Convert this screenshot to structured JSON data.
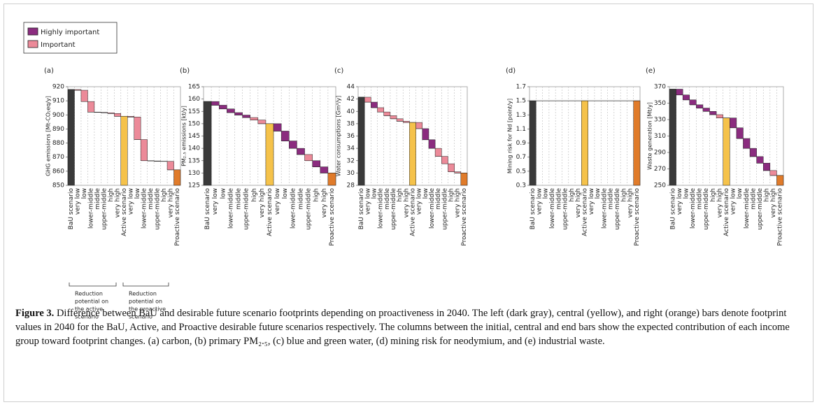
{
  "legend": [
    {
      "label": "Highly important",
      "color": "#8b2c7f"
    },
    {
      "label": "Important",
      "color": "#ec8a99"
    }
  ],
  "annotations": [
    [
      "Reduction",
      "potential on",
      "the active",
      "scenario"
    ],
    [
      "Reduction",
      "potential on",
      "the proactive",
      "scenario"
    ]
  ],
  "caption": {
    "label": "Figure 3.",
    "text": "Difference between BaU and desirable future scenario footprints depending on proactiveness in 2040. The left (dark gray), central (yellow), and right (orange) bars denote footprint values in 2040 for the BaU, Active, and Proactive desirable future scenarios respectively. The columns between the initial, central and end bars show the expected contribution of each income group toward footprint changes. (a) carbon, (b) primary PM₂.₅, (c) blue and green water, (d) mining risk for neodymium, and (e) industrial waste."
  },
  "chart_data": [
    {
      "type": "waterfall",
      "label": "(a)",
      "ylabel": "GHG emissions [Mt-CO₂eq/y]",
      "categories": [
        "BaU scenario",
        "very low",
        "low",
        "lower-middle",
        "middle",
        "upper-middle",
        "high",
        "very high",
        "Active scenario",
        "very low",
        "low",
        "lower-middle",
        "middle",
        "upper-middle",
        "high",
        "very high",
        "Proactive scenario"
      ],
      "values": [
        918,
        -0.5,
        -8,
        -7.5,
        -0.2,
        -0.3,
        -0.5,
        -2,
        899,
        -0.5,
        -16,
        -15,
        -0.2,
        -0.2,
        -0.1,
        -6,
        861
      ],
      "colors": [
        "#3a3a3a",
        "#ec8a99",
        "#ec8a99",
        "#ec8a99",
        "#ec8a99",
        "#ec8a99",
        "#ec8a99",
        "#ec8a99",
        "#f5c24a",
        "#ec8a99",
        "#ec8a99",
        "#ec8a99",
        "#ec8a99",
        "#ec8a99",
        "#ec8a99",
        "#ec8a99",
        "#e07b2a"
      ],
      "ylim": [
        850,
        920
      ],
      "yticks": [
        850,
        860,
        870,
        880,
        890,
        900,
        910,
        920
      ],
      "grid": true
    },
    {
      "type": "waterfall",
      "label": "(b)",
      "ylabel": "PM₂.₅ emissions [kt/y]",
      "categories": [
        "BaU scenario",
        "very low",
        "low",
        "lower-middle",
        "middle",
        "upper-middle",
        "high",
        "very high",
        "Active scenario",
        "very low",
        "low",
        "lower-middle",
        "middle",
        "upper-middle",
        "high",
        "very high",
        "Proactive scenario"
      ],
      "values": [
        159,
        -1.5,
        -1.5,
        -1.5,
        -1,
        -1,
        -1,
        -1.5,
        150,
        -3,
        -4,
        -3,
        -2.5,
        -2.5,
        -2.5,
        -2.5,
        130
      ],
      "colors": [
        "#3a3a3a",
        "#8b2c7f",
        "#8b2c7f",
        "#8b2c7f",
        "#8b2c7f",
        "#8b2c7f",
        "#ec8a99",
        "#ec8a99",
        "#f5c24a",
        "#8b2c7f",
        "#8b2c7f",
        "#8b2c7f",
        "#8b2c7f",
        "#ec8a99",
        "#8b2c7f",
        "#8b2c7f",
        "#e07b2a"
      ],
      "ylim": [
        125,
        165
      ],
      "yticks": [
        125,
        130,
        135,
        140,
        145,
        150,
        155,
        160,
        165
      ],
      "grid": true
    },
    {
      "type": "waterfall",
      "label": "(c)",
      "ylabel": "Water consumptions [Gm³/y]",
      "categories": [
        "BaU scenario",
        "very low",
        "low",
        "lower-middle",
        "middle",
        "upper-middle",
        "high",
        "very high",
        "Active scenario",
        "very low",
        "low",
        "lower-middle",
        "middle",
        "upper-middle",
        "high",
        "very high",
        "Proactive scenario"
      ],
      "values": [
        42.3,
        -0.8,
        -0.9,
        -0.7,
        -0.6,
        -0.5,
        -0.4,
        -0.2,
        38.2,
        -1.0,
        -1.8,
        -1.4,
        -1.3,
        -1.2,
        -1.3,
        -0.2,
        30
      ],
      "colors": [
        "#3a3a3a",
        "#ec8a99",
        "#8b2c7f",
        "#ec8a99",
        "#ec8a99",
        "#ec8a99",
        "#ec8a99",
        "#ec8a99",
        "#f5c24a",
        "#ec8a99",
        "#8b2c7f",
        "#8b2c7f",
        "#ec8a99",
        "#ec8a99",
        "#ec8a99",
        "#ec8a99",
        "#e07b2a"
      ],
      "ylim": [
        28,
        44
      ],
      "yticks": [
        28,
        30,
        32,
        34,
        36,
        38,
        40,
        42,
        44
      ],
      "grid": true
    },
    {
      "type": "waterfall",
      "label": "(d)",
      "ylabel": "Mining risk for Nd [point/y]",
      "categories": [
        "BaU scenario",
        "very low",
        "low",
        "lower-middle",
        "middle",
        "upper-middle",
        "high",
        "very high",
        "Active scenario",
        "very low",
        "low",
        "lower-middle",
        "middle",
        "upper-middle",
        "high",
        "very high",
        "Proactive scenario"
      ],
      "values": [
        1.5,
        0,
        0,
        0,
        0,
        0,
        0,
        0,
        1.5,
        0,
        0,
        0,
        0,
        0,
        0,
        0,
        1.5
      ],
      "colors": [
        "#3a3a3a",
        "#ec8a99",
        "#ec8a99",
        "#ec8a99",
        "#ec8a99",
        "#ec8a99",
        "#ec8a99",
        "#ec8a99",
        "#f5c24a",
        "#ec8a99",
        "#ec8a99",
        "#ec8a99",
        "#ec8a99",
        "#ec8a99",
        "#ec8a99",
        "#ec8a99",
        "#e07b2a"
      ],
      "ylim": [
        0.3,
        1.7
      ],
      "yticks": [
        0.3,
        0.5,
        0.7,
        0.9,
        1.1,
        1.3,
        1.5,
        1.7
      ],
      "grid": true
    },
    {
      "type": "waterfall",
      "label": "(e)",
      "ylabel": "Waste generation [Mt/y]",
      "categories": [
        "BaU scenario",
        "very low",
        "low",
        "lower-middle",
        "middle",
        "upper-middle",
        "high",
        "very high",
        "Active scenario",
        "very low",
        "low",
        "lower-middle",
        "middle",
        "upper-middle",
        "high",
        "very high",
        "Proactive scenario"
      ],
      "values": [
        367,
        -7,
        -6,
        -6,
        -4,
        -4,
        -4,
        -4,
        332,
        -12,
        -13,
        -12,
        -10,
        -8,
        -9,
        -6,
        262
      ],
      "colors": [
        "#3a3a3a",
        "#8b2c7f",
        "#8b2c7f",
        "#8b2c7f",
        "#8b2c7f",
        "#8b2c7f",
        "#8b2c7f",
        "#ec8a99",
        "#f5c24a",
        "#8b2c7f",
        "#8b2c7f",
        "#8b2c7f",
        "#8b2c7f",
        "#8b2c7f",
        "#8b2c7f",
        "#ec8a99",
        "#e07b2a"
      ],
      "ylim": [
        250,
        370
      ],
      "yticks": [
        250,
        270,
        290,
        310,
        330,
        350,
        370
      ],
      "grid": true
    }
  ]
}
